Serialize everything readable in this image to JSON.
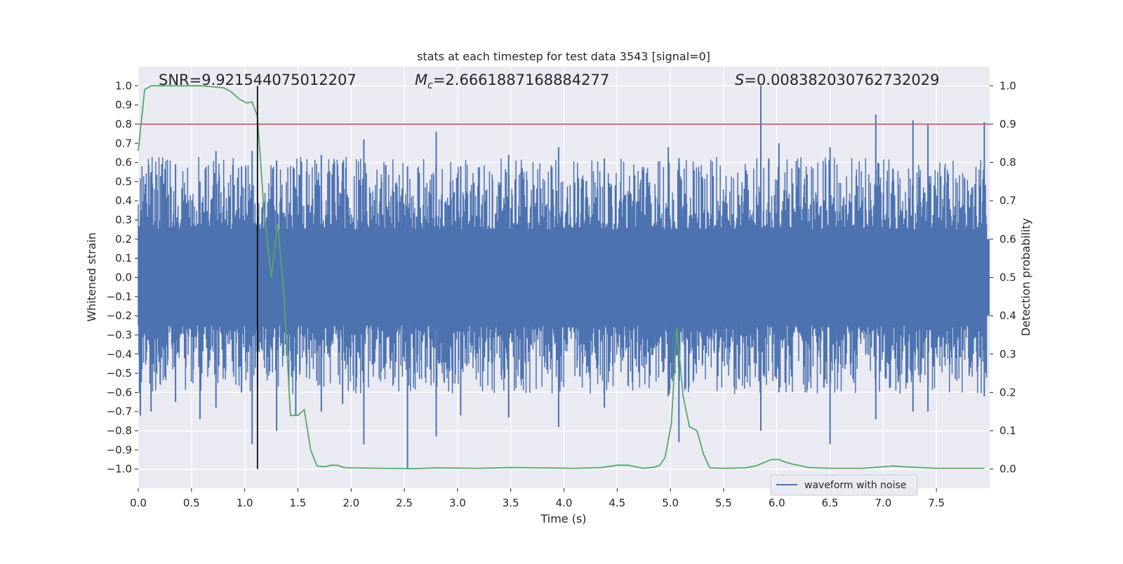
{
  "chart_data": {
    "type": "line",
    "title": "stats at each timestep for test data 3543 [signal=0]",
    "xlabel": "Time (s)",
    "ylabel": "Whitened strain",
    "ylabel_right": "Detection probability",
    "xlim": [
      0.0,
      8.0
    ],
    "ylim": [
      -1.1,
      1.1
    ],
    "ylim_right": [
      -0.05,
      1.05
    ],
    "x_ticks": [
      "0.0",
      "0.5",
      "1.0",
      "1.5",
      "2.0",
      "2.5",
      "3.0",
      "3.5",
      "4.0",
      "4.5",
      "5.0",
      "5.5",
      "6.0",
      "6.5",
      "7.0",
      "7.5"
    ],
    "y_ticks": [
      "1.0",
      "0.9",
      "0.8",
      "0.7",
      "0.6",
      "0.5",
      "0.4",
      "0.3",
      "0.2",
      "0.1",
      "0.0",
      "-0.1",
      "-0.2",
      "-0.3",
      "-0.4",
      "-0.5",
      "-0.6",
      "-0.7",
      "-0.8",
      "-0.9",
      "-1.0"
    ],
    "y_ticks_right": [
      "1.0",
      "0.9",
      "0.8",
      "0.7",
      "0.6",
      "0.5",
      "0.4",
      "0.3",
      "0.2",
      "0.1",
      "0.0"
    ],
    "grid": true,
    "legend": {
      "placement": "lower-right",
      "entries": [
        "waveform with noise"
      ]
    },
    "annotations": {
      "snr": "SNR=9.921544075012207",
      "mc_symbol": "M",
      "mc_sub": "c",
      "mc_value": "=2.6661887168884277",
      "s_symbol": "S",
      "s_value": "=0.008382030762732029"
    },
    "threshold": {
      "axis": "right",
      "value": 0.9,
      "color": "#c44e52"
    },
    "vline": {
      "x": 1.12,
      "y_range": [
        -1.0,
        1.0
      ],
      "color": "#000000"
    },
    "colors": {
      "waveform": "#4c72b0",
      "probability": "#55a868",
      "background": "#eaeaf2",
      "grid": "#ffffff"
    },
    "series": [
      {
        "name": "waveform with noise",
        "axis": "left",
        "description_samples": "dense noise, core band about -0.2 to 0.2, peaks up to 1.0 near x=5.85 and down to -1.0 near x=2.53",
        "peaks": [
          [
            0.02,
            0.3,
            -0.72
          ],
          [
            0.12,
            0.55,
            -0.7
          ],
          [
            0.35,
            0.59,
            -0.65
          ],
          [
            0.58,
            0.5,
            -0.74
          ],
          [
            0.73,
            0.66,
            -0.68
          ],
          [
            0.97,
            0.58,
            -0.6
          ],
          [
            1.07,
            0.66,
            -0.87
          ],
          [
            1.3,
            0.61,
            -0.8
          ],
          [
            1.48,
            0.46,
            -0.72
          ],
          [
            1.72,
            0.64,
            -0.7
          ],
          [
            1.92,
            0.6,
            -0.66
          ],
          [
            2.12,
            0.72,
            -0.87
          ],
          [
            2.53,
            0.58,
            -1.0
          ],
          [
            2.8,
            0.76,
            -0.83
          ],
          [
            3.03,
            0.58,
            -0.72
          ],
          [
            3.48,
            0.64,
            -0.73
          ],
          [
            3.95,
            0.68,
            -0.78
          ],
          [
            4.38,
            0.62,
            -0.68
          ],
          [
            4.98,
            0.68,
            -0.62
          ],
          [
            5.08,
            0.62,
            -0.86
          ],
          [
            5.85,
            1.0,
            -0.8
          ],
          [
            6.02,
            0.7,
            -0.6
          ],
          [
            6.5,
            0.68,
            -0.87
          ],
          [
            6.93,
            0.85,
            -0.74
          ],
          [
            7.28,
            0.82,
            -0.7
          ],
          [
            7.42,
            0.8,
            -0.7
          ],
          [
            7.95,
            0.81,
            -0.62
          ]
        ]
      },
      {
        "name": "",
        "axis": "right",
        "x": [
          0.0,
          0.06,
          0.12,
          0.2,
          0.4,
          0.6,
          0.8,
          0.87,
          0.95,
          1.02,
          1.07,
          1.12,
          1.18,
          1.25,
          1.31,
          1.37,
          1.43,
          1.5,
          1.56,
          1.62,
          1.68,
          1.75,
          1.81,
          1.87,
          1.93,
          2.0,
          2.3,
          2.6,
          2.8,
          3.2,
          3.5,
          3.8,
          4.1,
          4.35,
          4.5,
          4.6,
          4.75,
          4.85,
          4.9,
          4.95,
          5.01,
          5.06,
          5.12,
          5.18,
          5.25,
          5.31,
          5.37,
          5.5,
          5.7,
          5.8,
          5.88,
          5.95,
          6.02,
          6.08,
          6.15,
          6.3,
          6.5,
          6.8,
          7.1,
          7.2,
          7.5,
          7.95
        ],
        "values": [
          0.83,
          0.99,
          1.0,
          1.0,
          1.0,
          1.0,
          0.995,
          0.985,
          0.965,
          0.955,
          0.958,
          0.92,
          0.68,
          0.5,
          0.64,
          0.45,
          0.14,
          0.14,
          0.155,
          0.05,
          0.008,
          0.006,
          0.01,
          0.01,
          0.004,
          0.003,
          0.002,
          0.001,
          0.003,
          0.002,
          0.004,
          0.003,
          0.002,
          0.004,
          0.01,
          0.01,
          0.002,
          0.005,
          0.01,
          0.03,
          0.12,
          0.37,
          0.19,
          0.11,
          0.1,
          0.04,
          0.003,
          0.002,
          0.003,
          0.008,
          0.017,
          0.025,
          0.025,
          0.018,
          0.013,
          0.004,
          0.002,
          0.002,
          0.008,
          0.006,
          0.002,
          0.002
        ]
      }
    ]
  }
}
